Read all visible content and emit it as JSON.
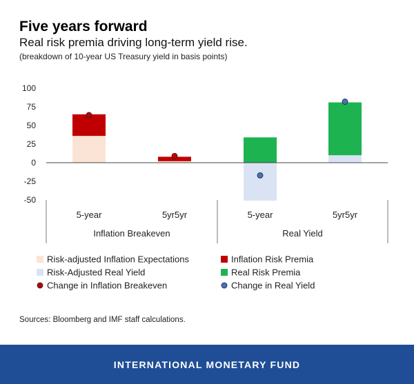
{
  "header": {
    "title": "Five years forward",
    "subtitle": "Real risk premia driving long-term yield rise.",
    "note": "(breakdown of 10-year US Treasury yield in basis points)"
  },
  "chart_data": {
    "type": "bar",
    "stacked": true,
    "categories": [
      "5-year",
      "5yr5yr",
      "5-year",
      "5yr5yr"
    ],
    "groups": [
      {
        "label": "Inflation Breakeven",
        "categories": [
          0,
          1
        ]
      },
      {
        "label": "Real Yield",
        "categories": [
          2,
          3
        ]
      }
    ],
    "yticks": [
      100,
      75,
      50,
      25,
      0,
      -25,
      -50
    ],
    "ylim": [
      -50,
      100
    ],
    "series": [
      {
        "name": "Risk-adjusted Inflation Expectations",
        "color": "#fbe3d5",
        "values": [
          36,
          2,
          null,
          null
        ]
      },
      {
        "name": "Inflation Risk Premia",
        "color": "#c00000",
        "values": [
          29,
          6,
          null,
          null
        ]
      },
      {
        "name": "Risk-Adjusted Real Yield",
        "color": "#dae3f3",
        "values": [
          null,
          null,
          -51,
          10
        ]
      },
      {
        "name": "Real Risk Premia",
        "color": "#1db351",
        "values": [
          null,
          null,
          34,
          71
        ]
      }
    ],
    "markers": [
      {
        "name": "Change in Inflation Breakeven",
        "color": "#c00000",
        "values": [
          64,
          9,
          null,
          null
        ]
      },
      {
        "name": "Change in Real Yield",
        "color": "#4472c4",
        "values": [
          null,
          null,
          -17,
          82
        ]
      }
    ],
    "legend": [
      {
        "name": "Risk-adjusted Inflation Expectations",
        "kind": "square",
        "color": "#fbe3d5"
      },
      {
        "name": "Inflation Risk Premia",
        "kind": "square",
        "color": "#c00000"
      },
      {
        "name": "Risk-Adjusted Real Yield",
        "kind": "square",
        "color": "#dae3f3"
      },
      {
        "name": "Real Risk Premia",
        "kind": "square",
        "color": "#1db351"
      },
      {
        "name": "Change in Inflation Breakeven",
        "kind": "dot",
        "color": "#c00000"
      },
      {
        "name": "Change in Real Yield",
        "kind": "dot",
        "color": "#4472c4"
      }
    ],
    "legend_position": "bottom"
  },
  "source": "Sources: Bloomberg and IMF staff calculations.",
  "footer": {
    "label": "INTERNATIONAL MONETARY FUND"
  }
}
